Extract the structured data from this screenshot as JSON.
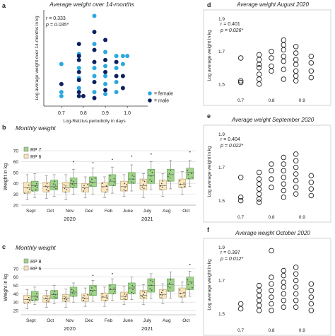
{
  "chart_data": [
    {
      "id": "a",
      "panel_label": "a",
      "type": "scatter",
      "title": "Average weight over 14-months",
      "xlabel": "Log-Retzius periodicity in days",
      "ylabel": "Log average weight over 14-months in kg",
      "stat_r": "r = 0.333",
      "stat_p": "p = 0.035*",
      "xlim": [
        0.62,
        1.08
      ],
      "ylim": [
        1.43,
        1.91
      ],
      "xticks": [
        "0.7",
        "0.8",
        "0.9",
        "1.0"
      ],
      "xtick_values": [
        0.7,
        0.8,
        0.9,
        1.0
      ],
      "legend": [
        {
          "label": "female",
          "color": "#2aa8e0"
        },
        {
          "label": "male",
          "color": "#0b2060"
        }
      ],
      "series": [
        {
          "name": "female",
          "color": "#2aa8e0",
          "points": [
            [
              0.7,
              1.64
            ],
            [
              0.7,
              1.5
            ],
            [
              0.7,
              1.48
            ],
            [
              0.78,
              1.69
            ],
            [
              0.78,
              1.62
            ],
            [
              0.78,
              1.57
            ],
            [
              0.78,
              1.52
            ],
            [
              0.85,
              1.88
            ],
            [
              0.85,
              1.74
            ],
            [
              0.85,
              1.62
            ],
            [
              0.85,
              1.58
            ],
            [
              0.85,
              1.5
            ],
            [
              0.9,
              1.7
            ],
            [
              0.9,
              1.63
            ],
            [
              0.9,
              1.58
            ],
            [
              0.9,
              1.54
            ],
            [
              0.9,
              1.49
            ],
            [
              0.95,
              1.68
            ],
            [
              0.95,
              1.62
            ],
            [
              0.95,
              1.55
            ],
            [
              0.95,
              1.5
            ],
            [
              0.98,
              1.68
            ],
            [
              0.98,
              1.64
            ],
            [
              1.0,
              1.68
            ]
          ]
        },
        {
          "name": "male",
          "color": "#0b2060",
          "points": [
            [
              0.7,
              1.54
            ],
            [
              0.78,
              1.74
            ],
            [
              0.78,
              1.68
            ],
            [
              0.78,
              1.66
            ],
            [
              0.78,
              1.6
            ],
            [
              0.78,
              1.56
            ],
            [
              0.78,
              1.5
            ],
            [
              0.78,
              1.48
            ],
            [
              0.8,
              1.48
            ],
            [
              0.85,
              1.8
            ],
            [
              0.85,
              1.71
            ],
            [
              0.85,
              1.65
            ],
            [
              0.85,
              1.55
            ],
            [
              0.85,
              1.47
            ],
            [
              0.9,
              1.76
            ],
            [
              0.9,
              1.66
            ],
            [
              0.9,
              1.6
            ],
            [
              0.9,
              1.51
            ],
            [
              0.95,
              1.65
            ],
            [
              0.95,
              1.58
            ],
            [
              0.98,
              1.58
            ],
            [
              0.98,
              1.52
            ]
          ]
        }
      ]
    },
    {
      "id": "b",
      "panel_label": "b",
      "type": "box",
      "title": "Monthly weight",
      "ylabel": "Weight in kg",
      "ylim": [
        20,
        72
      ],
      "yticks": [
        20,
        30,
        40,
        50,
        60,
        70
      ],
      "legend": [
        {
          "label": "RP 7",
          "color": "#9fd38a"
        },
        {
          "label": "RP 6",
          "color": "#f8e6c0"
        }
      ],
      "categories": [
        "Sept",
        "Oct",
        "Nov",
        "Dec",
        "Feb",
        "June",
        "July",
        "Aug",
        "Oct"
      ],
      "year_labels": [
        {
          "label": "2020",
          "after_category": 2
        },
        {
          "label": "2021",
          "after_category": 6
        }
      ],
      "series": [
        {
          "name": "RP 6",
          "color": "#f8e6c0",
          "boxes": [
            [
              25,
              31,
              36,
              41,
              48
            ],
            [
              26,
              32,
              37,
              41,
              47
            ],
            [
              25,
              32,
              36,
              41,
              48
            ],
            [
              27,
              32,
              36,
              40,
              46
            ],
            [
              27,
              32,
              37,
              41,
              46
            ],
            [
              28,
              33,
              37,
              42,
              48
            ],
            [
              27,
              34,
              38,
              44,
              49
            ],
            [
              28,
              34,
              38,
              43,
              49
            ],
            [
              30,
              36,
              39,
              44,
              51
            ]
          ]
        },
        {
          "name": "RP 7",
          "color": "#9fd38a",
          "boxes": [
            [
              27,
              33,
              38,
              42,
              49
            ],
            [
              28,
              34,
              37,
              43,
              48
            ],
            [
              30,
              36,
              40,
              45,
              53
            ],
            [
              30,
              37,
              41,
              46,
              54
            ],
            [
              31,
              38,
              42,
              48,
              55
            ],
            [
              33,
              40,
              44,
              50,
              57
            ],
            [
              34,
              40,
              47,
              53,
              60
            ],
            [
              35,
              42,
              48,
              53,
              61
            ],
            [
              37,
              44,
              50,
              54,
              61
            ]
          ]
        }
      ],
      "outliers": [
        {
          "series": "RP 7",
          "category": 2,
          "value": 60
        },
        {
          "series": "RP 7",
          "category": 3,
          "value": 59
        },
        {
          "series": "RP 7",
          "category": 4,
          "value": 62
        },
        {
          "series": "RP 7",
          "category": 5,
          "value": 65
        },
        {
          "series": "RP 7",
          "category": 6,
          "value": 67
        },
        {
          "series": "RP 7",
          "category": 8,
          "value": 69
        }
      ]
    },
    {
      "id": "c",
      "panel_label": "c",
      "type": "box",
      "title": "Monthly weight",
      "ylabel": "Weight in kg",
      "ylim": [
        15,
        80
      ],
      "yticks": [
        20,
        30,
        40,
        50,
        60,
        70
      ],
      "legend": [
        {
          "label": "RP 8",
          "color": "#9fd38a"
        },
        {
          "label": "RP 6",
          "color": "#f8e6c0"
        }
      ],
      "categories": [
        "Sept",
        "Oct",
        "Nov",
        "Dec",
        "Feb",
        "June",
        "July",
        "Aug",
        "Oct"
      ],
      "year_labels": [
        {
          "label": "2020",
          "after_category": 2
        },
        {
          "label": "2021",
          "after_category": 6
        }
      ],
      "series": [
        {
          "name": "RP 6",
          "color": "#f8e6c0",
          "boxes": [
            [
              22,
              29,
              33,
              38,
              45
            ],
            [
              24,
              30,
              34,
              38,
              44
            ],
            [
              24,
              31,
              35,
              39,
              46
            ],
            [
              25,
              31,
              35,
              40,
              47
            ],
            [
              25,
              32,
              36,
              41,
              48
            ],
            [
              27,
              33,
              37,
              42,
              49
            ],
            [
              27,
              34,
              38,
              44,
              51
            ],
            [
              28,
              35,
              39,
              45,
              52
            ],
            [
              30,
              36,
              41,
              47,
              54
            ]
          ]
        },
        {
          "name": "RP 8",
          "color": "#9fd38a",
          "boxes": [
            [
              27,
              32,
              37,
              43,
              48
            ],
            [
              28,
              34,
              39,
              44,
              50
            ],
            [
              30,
              37,
              42,
              48,
              53
            ],
            [
              31,
              38,
              44,
              50,
              56
            ],
            [
              32,
              40,
              45,
              51,
              58
            ],
            [
              33,
              40,
              47,
              53,
              60
            ],
            [
              34,
              42,
              50,
              58,
              64
            ],
            [
              35,
              43,
              51,
              58,
              66
            ],
            [
              37,
              45,
              54,
              60,
              67
            ]
          ]
        }
      ],
      "outliers": [
        {
          "series": "RP 8",
          "category": 3,
          "value": 62
        },
        {
          "series": "RP 8",
          "category": 4,
          "value": 64
        },
        {
          "series": "RP 8",
          "category": 8,
          "value": 75
        }
      ]
    },
    {
      "id": "d",
      "panel_label": "d",
      "type": "scatter",
      "title": "Average weight August 2020",
      "ylabel": "Log average weight in kg",
      "stat_r": "r = 0.401",
      "stat_p": "p = 0.026*",
      "xlim": [
        0.62,
        0.98
      ],
      "ylim": [
        1.43,
        1.92
      ],
      "xticks": [
        "0.7",
        "0.8",
        "0.9"
      ],
      "xtick_values": [
        0.7,
        0.8,
        0.9
      ],
      "yticks": [
        "1.5",
        "1.7",
        "1.9"
      ],
      "ytick_values": [
        1.5,
        1.7,
        1.9
      ],
      "points": [
        [
          0.7,
          1.66
        ],
        [
          0.7,
          1.52
        ],
        [
          0.7,
          1.51
        ],
        [
          0.76,
          1.68
        ],
        [
          0.76,
          1.65
        ],
        [
          0.76,
          1.62
        ],
        [
          0.76,
          1.6
        ],
        [
          0.76,
          1.56
        ],
        [
          0.76,
          1.53
        ],
        [
          0.76,
          1.5
        ],
        [
          0.8,
          1.7
        ],
        [
          0.8,
          1.66
        ],
        [
          0.8,
          1.61
        ],
        [
          0.8,
          1.58
        ],
        [
          0.84,
          1.77
        ],
        [
          0.84,
          1.74
        ],
        [
          0.84,
          1.71
        ],
        [
          0.84,
          1.67
        ],
        [
          0.84,
          1.64
        ],
        [
          0.84,
          1.59
        ],
        [
          0.84,
          1.53
        ],
        [
          0.88,
          1.73
        ],
        [
          0.88,
          1.69
        ],
        [
          0.88,
          1.65
        ],
        [
          0.88,
          1.62
        ],
        [
          0.88,
          1.58
        ],
        [
          0.88,
          1.55
        ],
        [
          0.88,
          1.52
        ],
        [
          0.93,
          1.67
        ],
        [
          0.93,
          1.63
        ],
        [
          0.93,
          1.58
        ],
        [
          0.93,
          1.54
        ]
      ]
    },
    {
      "id": "e",
      "panel_label": "e",
      "type": "scatter",
      "title": "Average weight September 2020",
      "ylabel": "Log average weight in kg",
      "stat_r": "r = 0.404",
      "stat_p": "p = 0.022*",
      "xlim": [
        0.62,
        0.98
      ],
      "ylim": [
        1.43,
        1.92
      ],
      "xticks": [
        "0.7",
        "0.8",
        "0.9"
      ],
      "xtick_values": [
        0.7,
        0.8,
        0.9
      ],
      "yticks": [
        "1.5",
        "1.7",
        "1.9"
      ],
      "ytick_values": [
        1.5,
        1.7,
        1.9
      ],
      "points": [
        [
          0.7,
          1.64
        ],
        [
          0.7,
          1.52
        ],
        [
          0.7,
          1.5
        ],
        [
          0.76,
          1.67
        ],
        [
          0.76,
          1.63
        ],
        [
          0.76,
          1.6
        ],
        [
          0.76,
          1.57
        ],
        [
          0.76,
          1.54
        ],
        [
          0.76,
          1.51
        ],
        [
          0.76,
          1.49
        ],
        [
          0.8,
          1.72
        ],
        [
          0.8,
          1.68
        ],
        [
          0.8,
          1.63
        ],
        [
          0.8,
          1.58
        ],
        [
          0.84,
          1.76
        ],
        [
          0.84,
          1.72
        ],
        [
          0.84,
          1.68
        ],
        [
          0.84,
          1.64
        ],
        [
          0.84,
          1.6
        ],
        [
          0.84,
          1.56
        ],
        [
          0.84,
          1.52
        ],
        [
          0.88,
          1.78
        ],
        [
          0.88,
          1.74
        ],
        [
          0.88,
          1.7
        ],
        [
          0.88,
          1.66
        ],
        [
          0.88,
          1.62
        ],
        [
          0.88,
          1.58
        ],
        [
          0.88,
          1.54
        ],
        [
          0.93,
          1.65
        ],
        [
          0.93,
          1.61
        ],
        [
          0.93,
          1.57
        ],
        [
          0.93,
          1.53
        ]
      ]
    },
    {
      "id": "f",
      "panel_label": "f",
      "type": "scatter",
      "title": "Average weight October 2020",
      "xlabel": "Log Retzius periodicity in days",
      "ylabel": "Log average weight in kg",
      "stat_r": "r = 0.397",
      "stat_p": "p = 0.012*",
      "xlim": [
        0.62,
        0.98
      ],
      "ylim": [
        1.43,
        1.92
      ],
      "xticks": [
        "0.7",
        "0.8",
        "0.9"
      ],
      "xtick_values": [
        0.7,
        0.8,
        0.9
      ],
      "yticks": [
        "1.5",
        "1.7",
        "1.9"
      ],
      "ytick_values": [
        1.5,
        1.7,
        1.9
      ],
      "points": [
        [
          0.7,
          1.56
        ],
        [
          0.7,
          1.53
        ],
        [
          0.76,
          1.67
        ],
        [
          0.76,
          1.64
        ],
        [
          0.76,
          1.61
        ],
        [
          0.76,
          1.58
        ],
        [
          0.76,
          1.55
        ],
        [
          0.76,
          1.52
        ],
        [
          0.8,
          1.88
        ],
        [
          0.8,
          1.72
        ],
        [
          0.8,
          1.68
        ],
        [
          0.8,
          1.64
        ],
        [
          0.8,
          1.6
        ],
        [
          0.8,
          1.56
        ],
        [
          0.8,
          1.52
        ],
        [
          0.84,
          1.76
        ],
        [
          0.84,
          1.73
        ],
        [
          0.84,
          1.69
        ],
        [
          0.84,
          1.66
        ],
        [
          0.84,
          1.62
        ],
        [
          0.84,
          1.58
        ],
        [
          0.84,
          1.54
        ],
        [
          0.88,
          1.78
        ],
        [
          0.88,
          1.74
        ],
        [
          0.88,
          1.7
        ],
        [
          0.88,
          1.66
        ],
        [
          0.88,
          1.62
        ],
        [
          0.88,
          1.58
        ],
        [
          0.88,
          1.54
        ],
        [
          0.93,
          1.68
        ],
        [
          0.93,
          1.64
        ],
        [
          0.93,
          1.6
        ],
        [
          0.93,
          1.56
        ],
        [
          0.93,
          1.52
        ]
      ]
    }
  ]
}
